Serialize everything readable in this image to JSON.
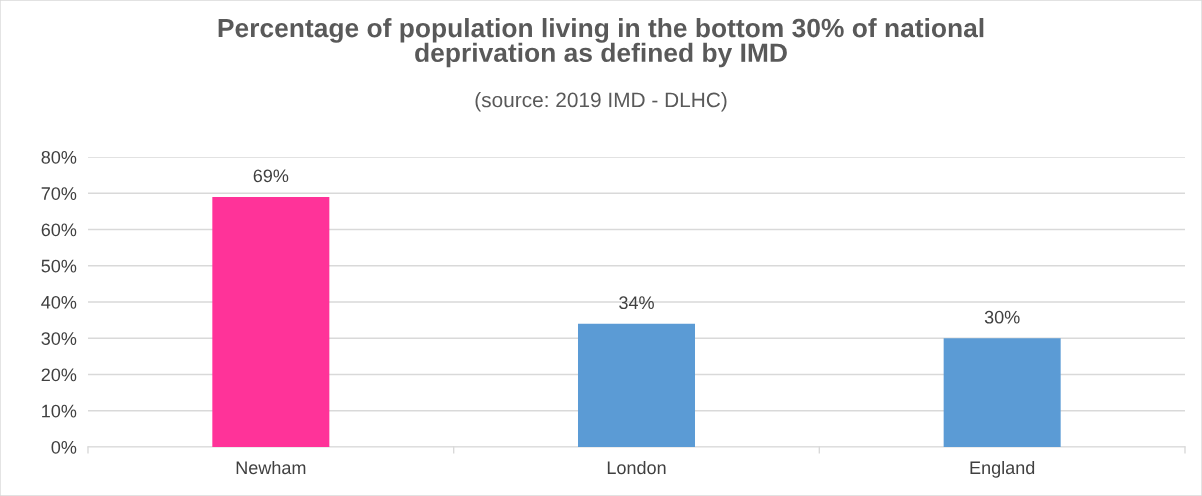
{
  "chart_data": {
    "type": "bar",
    "title": "Percentage of population living in the bottom 30% of national\ndeprivation as defined by IMD",
    "subtitle": "(source: 2019 IMD - DLHC)",
    "categories": [
      "Newham",
      "London",
      "England"
    ],
    "values": [
      69,
      34,
      30
    ],
    "colors": [
      "#ff3399",
      "#5b9bd5",
      "#5b9bd5"
    ],
    "value_labels": [
      "69%",
      "34%",
      "30%"
    ],
    "ylim": [
      0,
      80
    ],
    "yticks": [
      {
        "value": 0,
        "label": "0%"
      },
      {
        "value": 10,
        "label": "10%"
      },
      {
        "value": 20,
        "label": "20%"
      },
      {
        "value": 30,
        "label": "30%"
      },
      {
        "value": 40,
        "label": "40%"
      },
      {
        "value": 50,
        "label": "50%"
      },
      {
        "value": 60,
        "label": "60%"
      },
      {
        "value": 70,
        "label": "70%"
      },
      {
        "value": 80,
        "label": "80%"
      }
    ],
    "grid": "y",
    "legend": false
  }
}
